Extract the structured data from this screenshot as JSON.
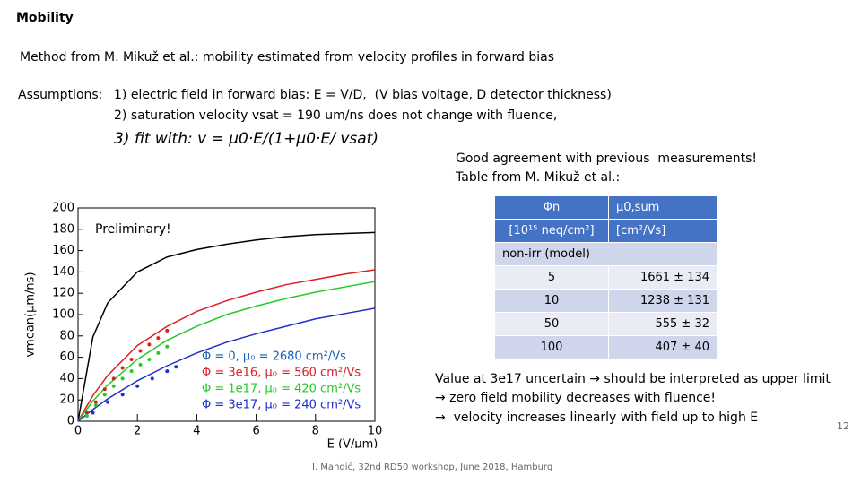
{
  "title": "Mobility",
  "method": "Method from M. Mikuž et al.: mobility estimated from velocity profiles in forward bias",
  "assumptions": {
    "label": "Assumptions:",
    "items": [
      "1) electric field in forward bias: E = V/D,  (V bias voltage, D detector thickness)",
      "2) saturation velocity vsat = 190 um/ns does not change with fluence,",
      "3) fit with: v = μ0·E/(1+μ0·E/ vsat)"
    ]
  },
  "agreement": [
    "Good agreement with previous  measurements!",
    "Table from M. Mikuž et al.:"
  ],
  "table": {
    "header": [
      "Φn",
      "μ0,sum"
    ],
    "rows": [
      [
        "[10¹⁵ neq/cm²]",
        "[cm²/Vs]"
      ],
      [
        "non-irr (model)"
      ],
      [
        "5",
        "1661 ± 134"
      ],
      [
        "10",
        "1238 ± 131"
      ],
      [
        "50",
        "555 ± 32"
      ],
      [
        "100",
        "407 ± 40"
      ]
    ]
  },
  "conclusions": [
    "Value at 3e17 uncertain → should be interpreted as upper limit",
    "→ zero field mobility decreases with fluence!",
    "→  velocity increases linearly with field up to high E"
  ],
  "page_number": "12",
  "footer": "I. Mandić, 32nd RD50 workshop, June 2018, Hamburg",
  "chart_data": {
    "type": "line",
    "x_label": "E (V/μm)",
    "y_label": "vmean(μm/ns)",
    "annotation": "Preliminary!",
    "xlim": [
      0,
      10
    ],
    "ylim": [
      0,
      200
    ],
    "xticks": [
      0,
      2,
      4,
      6,
      8,
      10
    ],
    "yticks": [
      0,
      20,
      40,
      60,
      80,
      100,
      120,
      140,
      160,
      180,
      200
    ],
    "x": [
      0,
      0.5,
      1,
      2,
      3,
      4,
      5,
      6,
      7,
      8,
      9,
      10
    ],
    "series": [
      {
        "name": "Φ = 0,    μ₀ = 2680 cm²/Vs",
        "color": "#1a5fb4",
        "line_color": "#000000",
        "values": [
          0,
          79,
          111,
          140,
          154,
          161,
          166,
          170,
          173,
          175,
          176,
          177
        ]
      },
      {
        "name": "Φ = 3e16, μ₀ = 560 cm²/Vs",
        "color": "#e01b24",
        "values": [
          0,
          24,
          43,
          71,
          89,
          103,
          113,
          121,
          128,
          133,
          138,
          142
        ]
      },
      {
        "name": "Φ = 1e17, μ₀ = 420 cm²/Vs",
        "color": "#26c926",
        "values": [
          0,
          19,
          34,
          58,
          76,
          89,
          100,
          108,
          115,
          121,
          126,
          131
        ]
      },
      {
        "name": "Φ = 3e17, μ₀ = 240 cm²/Vs",
        "color": "#1f2fc8",
        "values": [
          0,
          11,
          21,
          38,
          52,
          64,
          74,
          82,
          89,
          96,
          101,
          106
        ]
      }
    ],
    "points": [
      {
        "color": "#e01b24",
        "x": [
          0.3,
          0.6,
          0.9,
          1.2,
          1.5,
          1.8,
          2.1,
          2.4,
          2.7,
          3
        ],
        "values": [
          8,
          18,
          30,
          40,
          50,
          58,
          66,
          72,
          78,
          85
        ]
      },
      {
        "color": "#26c926",
        "x": [
          0.3,
          0.6,
          0.9,
          1.2,
          1.5,
          1.8,
          2.1,
          2.4,
          2.7,
          3
        ],
        "values": [
          5,
          15,
          25,
          33,
          40,
          47,
          53,
          58,
          64,
          70
        ]
      },
      {
        "color": "#1f2fc8",
        "x": [
          0.5,
          1,
          1.5,
          2,
          2.5,
          3,
          3.3
        ],
        "values": [
          8,
          18,
          25,
          33,
          40,
          47,
          51
        ]
      }
    ]
  }
}
